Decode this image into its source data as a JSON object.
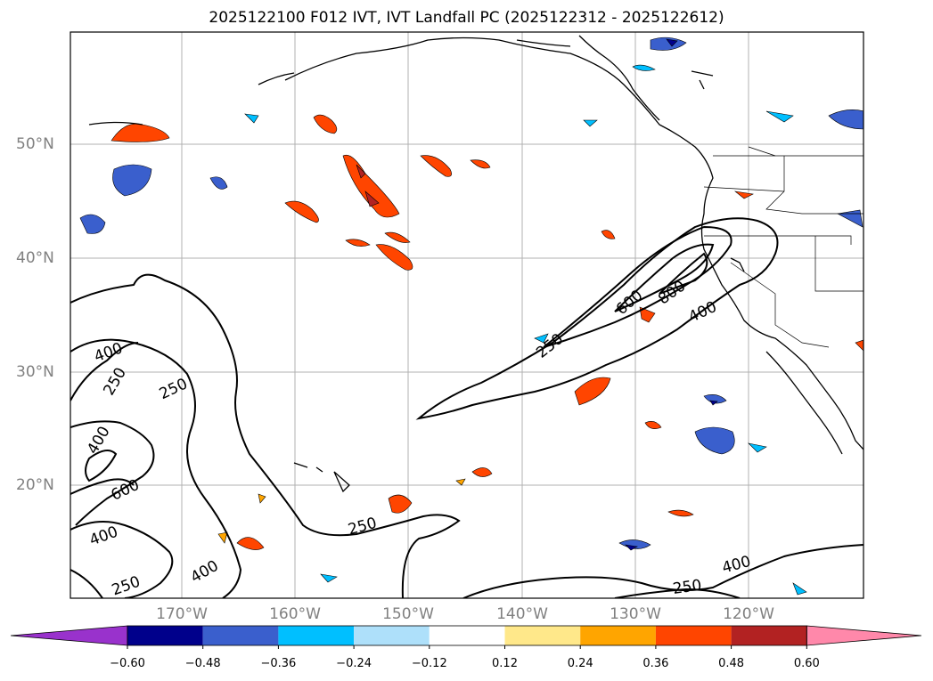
{
  "title": "2025122100 F012 IVT, IVT Landfall PC (2025122312 - 2025122612)",
  "lat_labels": [
    "50°N",
    "40°N",
    "30°N",
    "20°N"
  ],
  "lon_labels": [
    "170°W",
    "160°W",
    "150°W",
    "140°W",
    "130°W",
    "120°W"
  ],
  "contour_labels": [
    "600",
    "800",
    "400",
    "250",
    "400",
    "250",
    "250",
    "400",
    "600",
    "400",
    "250",
    "250",
    "400",
    "250",
    "400"
  ],
  "colorbar": {
    "ticks": [
      "−0.60",
      "−0.48",
      "−0.36",
      "−0.24",
      "−0.12",
      "0.12",
      "0.24",
      "0.36",
      "0.48",
      "0.60"
    ],
    "colors": [
      "#9932cc",
      "#00008b",
      "#3a5fcd",
      "#00bfff",
      "#aee0fa",
      "#ffffff",
      "#ffe88a",
      "#ffa500",
      "#ff4500",
      "#b22222",
      "#ff88aa"
    ]
  },
  "colors": {
    "grid": "#b0b0b0",
    "contour": "#000000",
    "axis_label": "#808080"
  }
}
